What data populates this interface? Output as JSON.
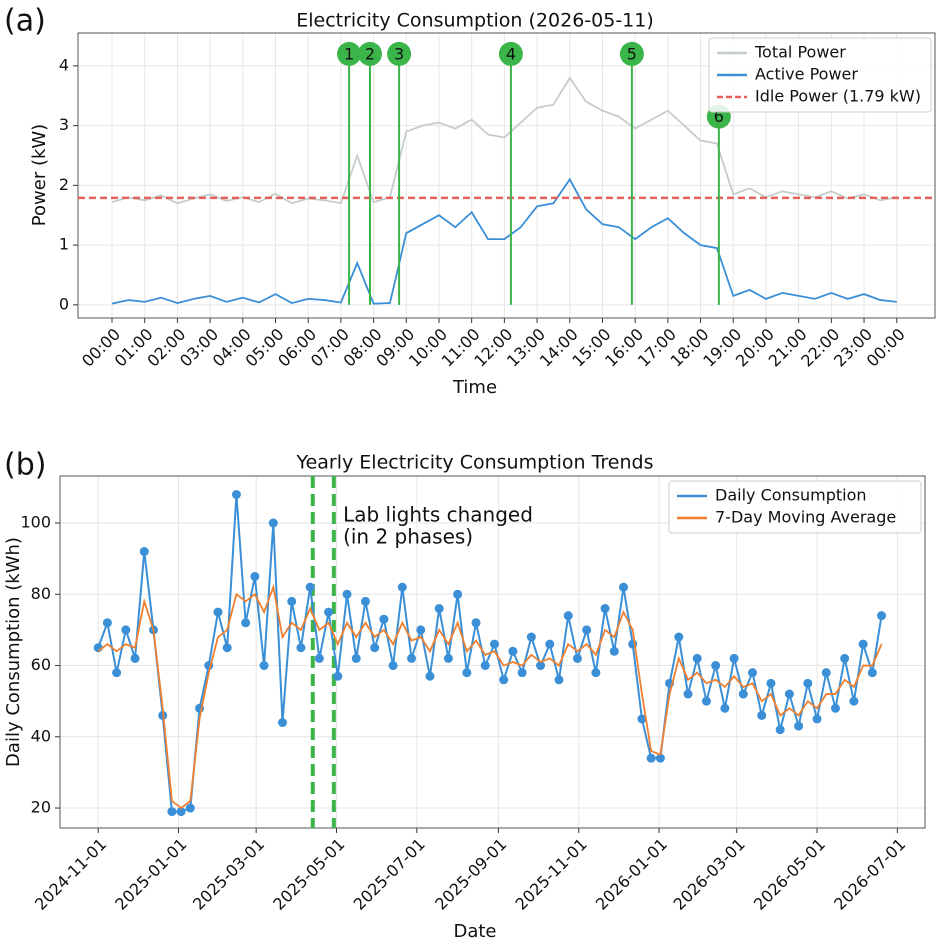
{
  "chart_data": [
    {
      "type": "line",
      "panel": "(a)",
      "title": "Electricity Consumption (2026-05-11)",
      "xlabel": "Time",
      "ylabel": "Power (kW)",
      "x": [
        0,
        0.5,
        1,
        1.5,
        2,
        2.5,
        3,
        3.5,
        4,
        4.5,
        5,
        5.5,
        6,
        6.5,
        7,
        7.5,
        8,
        8.5,
        9,
        9.5,
        10,
        10.5,
        11,
        11.5,
        12,
        12.5,
        13,
        13.5,
        14,
        14.5,
        15,
        15.5,
        16,
        16.5,
        17,
        17.5,
        18,
        18.5,
        19,
        19.5,
        20,
        20.5,
        21,
        21.5,
        22,
        22.5,
        23,
        23.5,
        24
      ],
      "series": [
        {
          "name": "Total Power",
          "color": "#c5cdcc",
          "values": [
            1.72,
            1.8,
            1.75,
            1.83,
            1.7,
            1.78,
            1.85,
            1.74,
            1.8,
            1.72,
            1.86,
            1.7,
            1.78,
            1.75,
            1.7,
            2.5,
            1.72,
            1.8,
            2.9,
            3.0,
            3.05,
            2.95,
            3.1,
            2.85,
            2.8,
            3.05,
            3.3,
            3.35,
            3.8,
            3.4,
            3.25,
            3.15,
            2.95,
            3.1,
            3.25,
            3.0,
            2.75,
            2.7,
            1.85,
            1.95,
            1.8,
            1.9,
            1.85,
            1.8,
            1.9,
            1.78,
            1.85,
            1.75,
            1.8
          ]
        },
        {
          "name": "Active Power",
          "color": "#3a8fd6",
          "values": [
            0.02,
            0.08,
            0.05,
            0.12,
            0.03,
            0.1,
            0.15,
            0.05,
            0.12,
            0.04,
            0.18,
            0.03,
            0.1,
            0.08,
            0.04,
            0.7,
            0.02,
            0.03,
            1.2,
            1.35,
            1.5,
            1.3,
            1.55,
            1.1,
            1.1,
            1.3,
            1.65,
            1.7,
            2.1,
            1.6,
            1.35,
            1.3,
            1.1,
            1.3,
            1.45,
            1.2,
            1.0,
            0.95,
            0.15,
            0.25,
            0.1,
            0.2,
            0.15,
            0.1,
            0.2,
            0.1,
            0.18,
            0.08,
            0.05
          ]
        }
      ],
      "hlines": [
        {
          "name": "Idle Power (1.79 kW)",
          "value": 1.79,
          "color": "#e8605a",
          "style": "dashed"
        }
      ],
      "markers": [
        {
          "label": "1",
          "x": 7.25,
          "y": 4.2
        },
        {
          "label": "2",
          "x": 7.89,
          "y": 4.2
        },
        {
          "label": "3",
          "x": 8.78,
          "y": 4.2
        },
        {
          "label": "4",
          "x": 12.2,
          "y": 4.2
        },
        {
          "label": "5",
          "x": 15.9,
          "y": 4.2
        },
        {
          "label": "6",
          "x": 18.56,
          "y": 3.15
        }
      ],
      "marker_color": "#3bb54a",
      "xlim": [
        -1.04,
        25.17
      ],
      "ylim": [
        -0.22,
        4.55
      ],
      "yticks": [
        0,
        1,
        2,
        3,
        4
      ],
      "xticks": [
        {
          "value": 0,
          "label": "00:00"
        },
        {
          "value": 1,
          "label": "01:00"
        },
        {
          "value": 2,
          "label": "02:00"
        },
        {
          "value": 3,
          "label": "03:00"
        },
        {
          "value": 4,
          "label": "04:00"
        },
        {
          "value": 5,
          "label": "05:00"
        },
        {
          "value": 6,
          "label": "06:00"
        },
        {
          "value": 7,
          "label": "07:00"
        },
        {
          "value": 8,
          "label": "08:00"
        },
        {
          "value": 9,
          "label": "09:00"
        },
        {
          "value": 10,
          "label": "10:00"
        },
        {
          "value": 11,
          "label": "11:00"
        },
        {
          "value": 12,
          "label": "12:00"
        },
        {
          "value": 13,
          "label": "13:00"
        },
        {
          "value": 14,
          "label": "14:00"
        },
        {
          "value": 15,
          "label": "15:00"
        },
        {
          "value": 16,
          "label": "16:00"
        },
        {
          "value": 17,
          "label": "17:00"
        },
        {
          "value": 18,
          "label": "18:00"
        },
        {
          "value": 19,
          "label": "19:00"
        },
        {
          "value": 20,
          "label": "20:00"
        },
        {
          "value": 21,
          "label": "21:00"
        },
        {
          "value": 22,
          "label": "22:00"
        },
        {
          "value": 23,
          "label": "23:00"
        },
        {
          "value": 24,
          "label": "00:00",
          "color": "#ff0000"
        }
      ],
      "grid": true,
      "legend": "upper right"
    },
    {
      "type": "line",
      "panel": "(b)",
      "title": "Yearly Electricity Consumption Trends",
      "xlabel": "Date",
      "ylabel": "Daily Consumption (kWh)",
      "x": [
        "2024-11-01",
        "2024-11-08",
        "2024-11-15",
        "2024-11-22",
        "2024-11-29",
        "2024-12-06",
        "2024-12-13",
        "2024-12-20",
        "2024-12-27",
        "2025-01-03",
        "2025-01-10",
        "2025-01-17",
        "2025-01-24",
        "2025-01-31",
        "2025-02-07",
        "2025-02-14",
        "2025-02-21",
        "2025-02-28",
        "2025-03-07",
        "2025-03-14",
        "2025-03-21",
        "2025-03-28",
        "2025-04-04",
        "2025-04-11",
        "2025-04-18",
        "2025-04-25",
        "2025-05-02",
        "2025-05-09",
        "2025-05-16",
        "2025-05-23",
        "2025-05-30",
        "2025-06-06",
        "2025-06-13",
        "2025-06-20",
        "2025-06-27",
        "2025-07-04",
        "2025-07-11",
        "2025-07-18",
        "2025-07-25",
        "2025-08-01",
        "2025-08-08",
        "2025-08-15",
        "2025-08-22",
        "2025-08-29",
        "2025-09-05",
        "2025-09-12",
        "2025-09-19",
        "2025-09-26",
        "2025-10-03",
        "2025-10-10",
        "2025-10-17",
        "2025-10-24",
        "2025-10-31",
        "2025-11-07",
        "2025-11-14",
        "2025-11-21",
        "2025-11-28",
        "2025-12-05",
        "2025-12-12",
        "2025-12-19",
        "2025-12-26",
        "2026-01-02",
        "2026-01-09",
        "2026-01-16",
        "2026-01-23",
        "2026-01-30",
        "2026-02-06",
        "2026-02-13",
        "2026-02-20",
        "2026-02-27",
        "2026-03-06",
        "2026-03-13",
        "2026-03-20",
        "2026-03-27",
        "2026-04-03",
        "2026-04-10",
        "2026-04-17",
        "2026-04-24",
        "2026-05-01",
        "2026-05-08",
        "2026-05-15",
        "2026-05-22",
        "2026-05-29",
        "2026-06-05",
        "2026-06-12",
        "2026-06-19"
      ],
      "series": [
        {
          "name": "Daily Consumption",
          "color": "#3a8fd6",
          "markers": true,
          "values": [
            65,
            72,
            58,
            70,
            62,
            92,
            70,
            46,
            19,
            19,
            20,
            48,
            60,
            75,
            65,
            108,
            72,
            85,
            60,
            100,
            44,
            78,
            65,
            82,
            62,
            75,
            57,
            80,
            62,
            78,
            65,
            73,
            60,
            82,
            62,
            70,
            57,
            76,
            62,
            80,
            58,
            72,
            60,
            66,
            56,
            64,
            58,
            68,
            60,
            66,
            56,
            74,
            62,
            70,
            58,
            76,
            64,
            82,
            66,
            45,
            34,
            34,
            55,
            68,
            52,
            62,
            50,
            60,
            48,
            62,
            52,
            58,
            46,
            55,
            42,
            52,
            43,
            55,
            45,
            58,
            48,
            62,
            50,
            66,
            58,
            74
          ]
        },
        {
          "name": "7-Day Moving Average",
          "color": "#f08030",
          "values": [
            64,
            66,
            64,
            66,
            65,
            78,
            70,
            48,
            22,
            20,
            22,
            45,
            58,
            68,
            70,
            80,
            78,
            80,
            75,
            82,
            68,
            72,
            70,
            76,
            70,
            72,
            66,
            72,
            68,
            72,
            68,
            70,
            66,
            72,
            67,
            68,
            64,
            70,
            66,
            72,
            64,
            67,
            63,
            64,
            60,
            61,
            60,
            63,
            61,
            62,
            60,
            66,
            64,
            66,
            63,
            70,
            68,
            75,
            70,
            52,
            36,
            35,
            52,
            62,
            56,
            58,
            55,
            56,
            54,
            57,
            54,
            55,
            50,
            52,
            46,
            48,
            46,
            50,
            48,
            52,
            52,
            56,
            54,
            60,
            60,
            66
          ]
        }
      ],
      "vlines": [
        {
          "x": "2025-04-13",
          "color": "#3bb54a",
          "style": "dashed"
        },
        {
          "x": "2025-04-29",
          "color": "#3bb54a",
          "style": "dashed"
        }
      ],
      "annotation": {
        "lines": [
          "Lab lights changed",
          "(in 2 phases)"
        ],
        "x": "2025-05-06",
        "y": 102,
        "color": "#3bb54a"
      },
      "xlim": [
        "2024-10-03",
        "2026-07-22"
      ],
      "ylim": [
        14.4,
        113.2
      ],
      "yticks": [
        20,
        40,
        60,
        80,
        100
      ],
      "xticks": [
        "2024-11-01",
        "2025-01-01",
        "2025-03-01",
        "2025-05-01",
        "2025-07-01",
        "2025-09-01",
        "2025-11-01",
        "2026-01-01",
        "2026-03-01",
        "2026-05-01",
        "2026-07-01"
      ],
      "grid": true,
      "legend": "upper right"
    }
  ]
}
